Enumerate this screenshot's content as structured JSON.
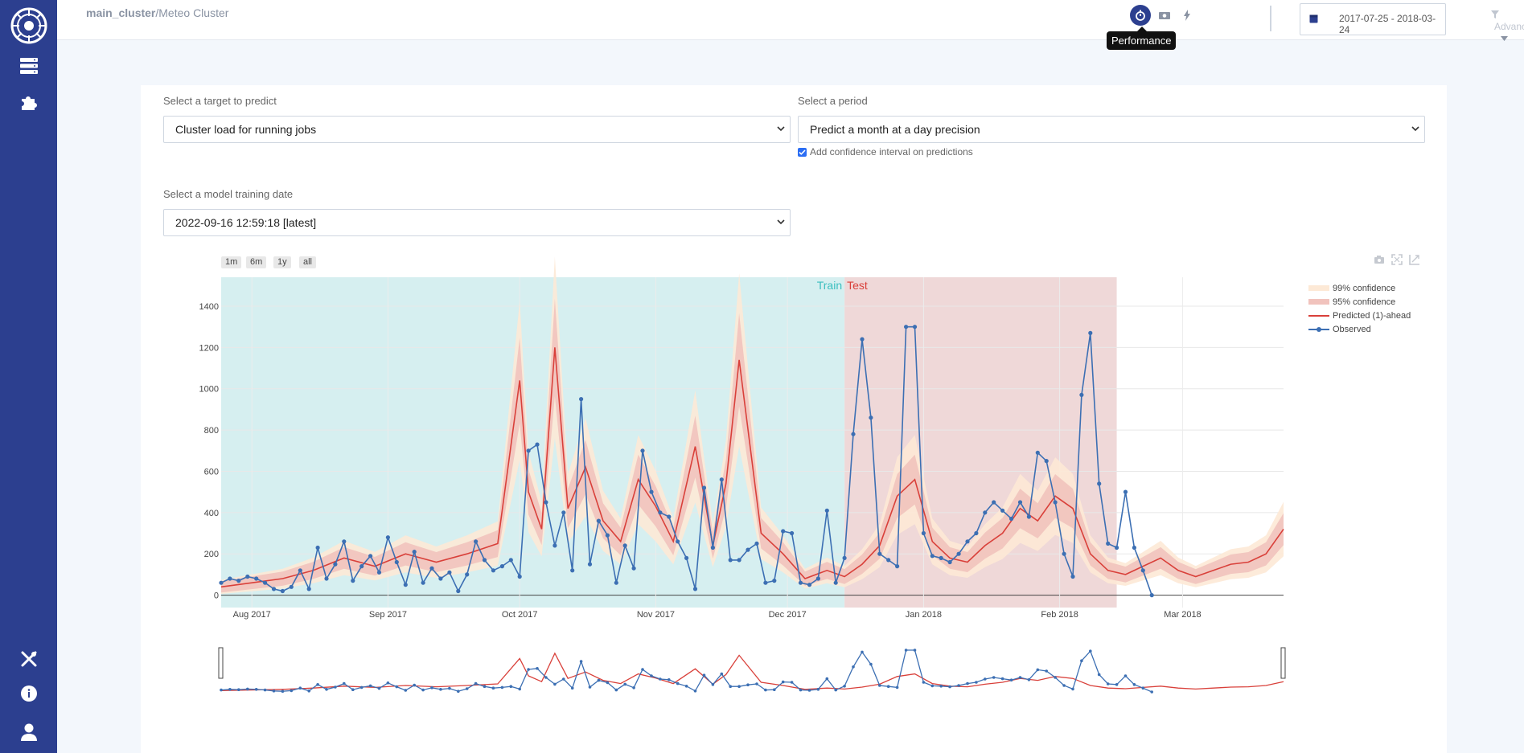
{
  "breadcrumb": {
    "cluster": "main_cluster",
    "separator": "/",
    "name": "Meteo Cluster"
  },
  "toolbar": {
    "tooltip": "Performance",
    "date_range": "2017-07-25 - 2018-03-24",
    "advanced_label": "Advanced"
  },
  "form": {
    "target_label": "Select a target to predict",
    "target_value": "Cluster load for running jobs",
    "period_label": "Select a period",
    "period_value": "Predict a month at a day precision",
    "confidence_label": "Add confidence interval on predictions",
    "confidence_checked": true,
    "training_label": "Select a model training date",
    "training_value": "2022-09-16 12:59:18 [latest]"
  },
  "range_buttons": [
    "1m",
    "6m",
    "1y",
    "all"
  ],
  "icons": {
    "sidebar": [
      "logo-icon",
      "server-icon",
      "puzzle-icon",
      "tools-icon",
      "info-icon",
      "user-icon"
    ],
    "toolbar": [
      "stopwatch-icon",
      "camera-icon",
      "lightning-icon",
      "calendar-icon",
      "filter-icon",
      "caret-down-icon"
    ],
    "modebar": [
      "camera-icon",
      "autoscale-icon",
      "reset-axes-icon"
    ]
  },
  "colors": {
    "sidebar": "#2c3f8f",
    "train_band": "#d6eff0",
    "test_band": "#efd8d8",
    "predicted": "#d9403a",
    "observed": "#3c6fb3",
    "conf99": "#fde9d6",
    "conf95": "#f1c3bd",
    "train_text": "#3bbfbf",
    "test_text": "#d9403a"
  },
  "chart_data": {
    "type": "line",
    "title": "",
    "xlabel": "",
    "ylabel": "",
    "x_ticks": [
      "Aug 2017",
      "Sep 2017",
      "Oct 2017",
      "Nov 2017",
      "Dec 2017",
      "Jan 2018",
      "Feb 2018",
      "Mar 2018"
    ],
    "y_ticks": [
      0,
      200,
      400,
      600,
      800,
      1000,
      1200,
      1400
    ],
    "x_range": [
      "2017-07-25",
      "2018-03-24"
    ],
    "ylim": [
      -60,
      1540
    ],
    "grid": true,
    "legend_position": "top-right",
    "legend": [
      "99% confidence",
      "95% confidence",
      "Predicted (1)-ahead",
      "Observed"
    ],
    "regions": [
      {
        "label": "Train",
        "start": "2017-07-25",
        "end": "2017-12-14"
      },
      {
        "label": "Test",
        "start": "2017-12-14",
        "end": "2018-02-14"
      }
    ],
    "observed_dates": [
      "2017-07-25",
      "2017-07-27",
      "2017-07-29",
      "2017-07-31",
      "2017-08-02",
      "2017-08-04",
      "2017-08-06",
      "2017-08-08",
      "2017-08-10",
      "2017-08-12",
      "2017-08-14",
      "2017-08-16",
      "2017-08-18",
      "2017-08-20",
      "2017-08-22",
      "2017-08-24",
      "2017-08-26",
      "2017-08-28",
      "2017-08-30",
      "2017-09-01",
      "2017-09-03",
      "2017-09-05",
      "2017-09-07",
      "2017-09-09",
      "2017-09-11",
      "2017-09-13",
      "2017-09-15",
      "2017-09-17",
      "2017-09-19",
      "2017-09-21",
      "2017-09-23",
      "2017-09-25",
      "2017-09-27",
      "2017-09-29",
      "2017-10-01",
      "2017-10-03",
      "2017-10-05",
      "2017-10-07",
      "2017-10-09",
      "2017-10-11",
      "2017-10-13",
      "2017-10-15",
      "2017-10-17",
      "2017-10-19",
      "2017-10-21",
      "2017-10-23",
      "2017-10-25",
      "2017-10-27",
      "2017-10-29",
      "2017-10-31",
      "2017-11-02",
      "2017-11-04",
      "2017-11-06",
      "2017-11-08",
      "2017-11-10",
      "2017-11-12",
      "2017-11-14",
      "2017-11-16",
      "2017-11-18",
      "2017-11-20",
      "2017-11-22",
      "2017-11-24",
      "2017-11-26",
      "2017-11-28",
      "2017-11-30",
      "2017-12-02",
      "2017-12-04",
      "2017-12-06",
      "2017-12-08",
      "2017-12-10",
      "2017-12-12",
      "2017-12-14",
      "2017-12-16",
      "2017-12-18",
      "2017-12-20",
      "2017-12-22",
      "2017-12-24",
      "2017-12-26",
      "2017-12-28",
      "2017-12-30",
      "2018-01-01",
      "2018-01-03",
      "2018-01-05",
      "2018-01-07",
      "2018-01-09",
      "2018-01-11",
      "2018-01-13",
      "2018-01-15",
      "2018-01-17",
      "2018-01-19",
      "2018-01-21",
      "2018-01-23",
      "2018-01-25",
      "2018-01-27",
      "2018-01-29",
      "2018-01-31",
      "2018-02-02",
      "2018-02-04",
      "2018-02-06",
      "2018-02-08",
      "2018-02-10",
      "2018-02-12",
      "2018-02-14",
      "2018-02-16",
      "2018-02-18",
      "2018-02-20",
      "2018-02-22"
    ],
    "observed_values": [
      60,
      80,
      70,
      90,
      80,
      60,
      30,
      20,
      40,
      120,
      30,
      230,
      80,
      150,
      260,
      70,
      140,
      190,
      110,
      280,
      160,
      50,
      210,
      60,
      130,
      80,
      110,
      20,
      100,
      260,
      170,
      120,
      140,
      170,
      90,
      700,
      730,
      450,
      240,
      400,
      120,
      950,
      150,
      360,
      290,
      60,
      240,
      130,
      700,
      500,
      400,
      380,
      260,
      180,
      30,
      520,
      230,
      560,
      170,
      170,
      220,
      250,
      60,
      70,
      310,
      300,
      60,
      50,
      80,
      410,
      60,
      180,
      780,
      1240,
      860,
      200,
      170,
      140,
      1300,
      1300,
      300,
      190,
      180,
      160,
      200,
      260,
      300,
      400,
      450,
      410,
      370,
      450,
      380,
      690,
      650,
      450,
      200,
      90,
      970,
      1270,
      540,
      250,
      230,
      500,
      230,
      120,
      0
    ],
    "predicted_dates": [
      "2017-07-25",
      "2017-08-01",
      "2017-08-08",
      "2017-08-15",
      "2017-08-22",
      "2017-08-29",
      "2017-09-05",
      "2017-09-12",
      "2017-09-19",
      "2017-09-26",
      "2017-10-01",
      "2017-10-03",
      "2017-10-06",
      "2017-10-09",
      "2017-10-12",
      "2017-10-16",
      "2017-10-20",
      "2017-10-24",
      "2017-10-28",
      "2017-11-01",
      "2017-11-05",
      "2017-11-10",
      "2017-11-14",
      "2017-11-17",
      "2017-11-20",
      "2017-11-25",
      "2017-11-30",
      "2017-12-05",
      "2017-12-10",
      "2017-12-14",
      "2017-12-18",
      "2017-12-22",
      "2017-12-26",
      "2017-12-30",
      "2018-01-03",
      "2018-01-07",
      "2018-01-11",
      "2018-01-15",
      "2018-01-19",
      "2018-01-23",
      "2018-01-27",
      "2018-01-31",
      "2018-02-04",
      "2018-02-08",
      "2018-02-12",
      "2018-02-16",
      "2018-02-20",
      "2018-02-24",
      "2018-02-28",
      "2018-03-04",
      "2018-03-08",
      "2018-03-12",
      "2018-03-16",
      "2018-03-20",
      "2018-03-24"
    ],
    "predicted_values": [
      40,
      60,
      80,
      120,
      180,
      140,
      200,
      160,
      200,
      250,
      1040,
      500,
      320,
      1200,
      420,
      620,
      360,
      260,
      560,
      430,
      260,
      720,
      240,
      540,
      1140,
      300,
      200,
      80,
      120,
      90,
      150,
      240,
      480,
      560,
      260,
      180,
      160,
      240,
      300,
      420,
      360,
      480,
      420,
      200,
      120,
      100,
      140,
      180,
      120,
      90,
      120,
      150,
      160,
      200,
      320
    ]
  }
}
